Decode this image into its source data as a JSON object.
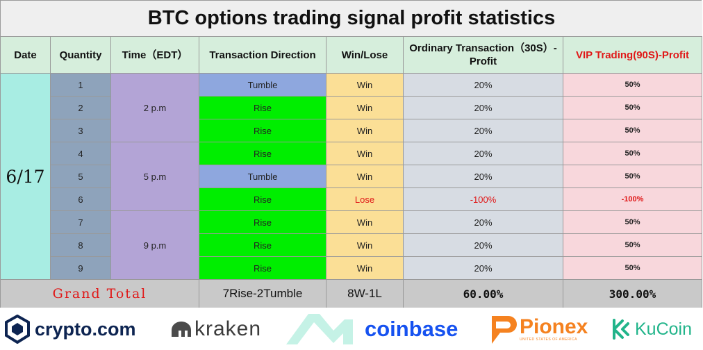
{
  "title": "BTC options trading signal profit statistics",
  "headers": {
    "date": "Date",
    "quantity": "Quantity",
    "time": "Time（EDT）",
    "direction": "Transaction Direction",
    "winlose": "Win/Lose",
    "ordinary": "Ordinary Transaction（30S）-Profit",
    "vip": "VIP Trading(90S)-Profit"
  },
  "date": "6/17",
  "time_slots": [
    "2 p.m",
    "5 p.m",
    "9 p.m"
  ],
  "rows": [
    {
      "qty": "1",
      "dir": "Tumble",
      "wl": "Win",
      "ord": "20%",
      "vip": "50%"
    },
    {
      "qty": "2",
      "dir": "Rise",
      "wl": "Win",
      "ord": "20%",
      "vip": "50%"
    },
    {
      "qty": "3",
      "dir": "Rise",
      "wl": "Win",
      "ord": "20%",
      "vip": "50%"
    },
    {
      "qty": "4",
      "dir": "Rise",
      "wl": "Win",
      "ord": "20%",
      "vip": "50%"
    },
    {
      "qty": "5",
      "dir": "Tumble",
      "wl": "Win",
      "ord": "20%",
      "vip": "50%"
    },
    {
      "qty": "6",
      "dir": "Rise",
      "wl": "Lose",
      "ord": "-100%",
      "vip": "-100%"
    },
    {
      "qty": "7",
      "dir": "Rise",
      "wl": "Win",
      "ord": "20%",
      "vip": "50%"
    },
    {
      "qty": "8",
      "dir": "Rise",
      "wl": "Win",
      "ord": "20%",
      "vip": "50%"
    },
    {
      "qty": "9",
      "dir": "Rise",
      "wl": "Win",
      "ord": "20%",
      "vip": "50%"
    }
  ],
  "total": {
    "label": "Grand Total",
    "direction": "7Rise-2Tumble",
    "winlose": "8W-1L",
    "ordinary": "60.00%",
    "vip": "300.00%"
  },
  "logos": {
    "crypto": "crypto.com",
    "kraken": "kraken",
    "coinbase": "coinbase",
    "pionex": "Pionex",
    "pionex_sub": "UNITED STATES OF AMERICA",
    "kucoin": "KuCoin"
  },
  "colors": {
    "rise": "#00ee00",
    "tumble": "#8ea7de",
    "lose_text": "#e01818",
    "vip_header": "#e01818"
  }
}
